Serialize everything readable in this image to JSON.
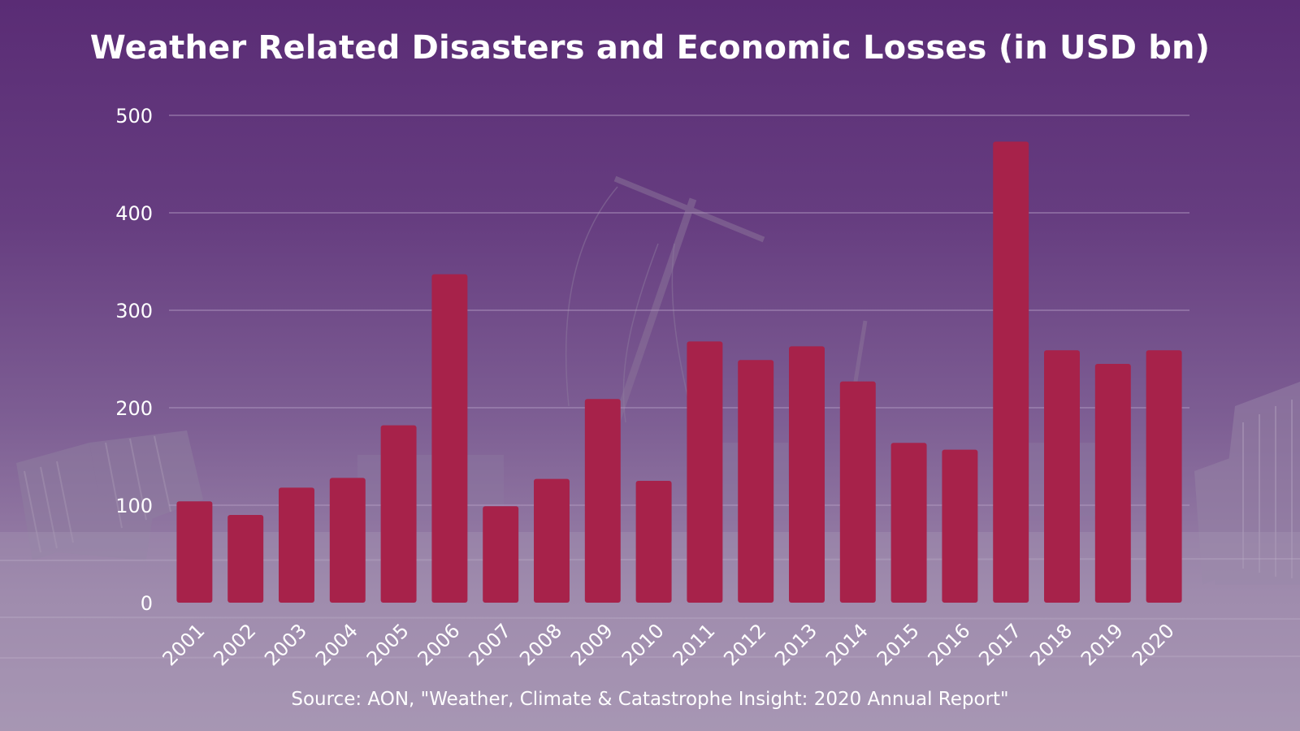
{
  "colors": {
    "bar": "#a7224a",
    "grid": "#b59cc4",
    "text": "#ffffff"
  },
  "chart_data": {
    "type": "bar",
    "title": "Weather Related Disasters and Economic Losses (in USD bn)",
    "source": "Source: AON, \"Weather, Climate & Catastrophe Insight: 2020 Annual Report\"",
    "xlabel": "",
    "ylabel": "",
    "ylim": [
      0,
      500
    ],
    "yticks": [
      "0",
      "100",
      "200",
      "300",
      "400",
      "500"
    ],
    "grid": true,
    "categories": [
      "2001",
      "2002",
      "2003",
      "2004",
      "2005",
      "2006",
      "2007",
      "2008",
      "2009",
      "2010",
      "2011",
      "2012",
      "2013",
      "2014",
      "2015",
      "2016",
      "2017",
      "2018",
      "2019",
      "2020"
    ],
    "values": [
      104,
      90,
      118,
      128,
      182,
      337,
      99,
      127,
      209,
      125,
      268,
      249,
      263,
      227,
      164,
      157,
      473,
      259,
      245,
      259
    ]
  }
}
